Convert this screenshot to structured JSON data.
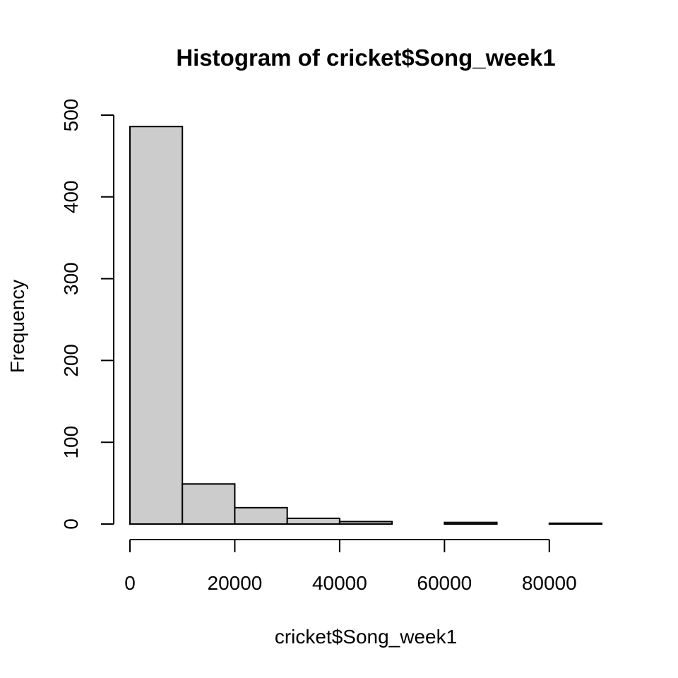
{
  "chart_data": {
    "type": "bar",
    "subtype": "histogram",
    "title": "Histogram of cricket$Song_week1",
    "xlabel": "cricket$Song_week1",
    "ylabel": "Frequency",
    "bins": [
      {
        "start": 0,
        "end": 10000,
        "count": 486
      },
      {
        "start": 10000,
        "end": 20000,
        "count": 49
      },
      {
        "start": 20000,
        "end": 30000,
        "count": 20
      },
      {
        "start": 30000,
        "end": 40000,
        "count": 7
      },
      {
        "start": 40000,
        "end": 50000,
        "count": 3
      },
      {
        "start": 50000,
        "end": 60000,
        "count": 0
      },
      {
        "start": 60000,
        "end": 70000,
        "count": 2
      },
      {
        "start": 70000,
        "end": 80000,
        "count": 0
      },
      {
        "start": 80000,
        "end": 90000,
        "count": 1
      }
    ],
    "xlim": [
      0,
      90000
    ],
    "ylim": [
      0,
      500
    ],
    "x_ticks": [
      0,
      20000,
      40000,
      60000,
      80000
    ],
    "y_ticks": [
      0,
      100,
      200,
      300,
      400,
      500
    ],
    "bar_color": "#cccccc",
    "bar_border_color": "#000000",
    "grid": false,
    "legend": "none"
  }
}
